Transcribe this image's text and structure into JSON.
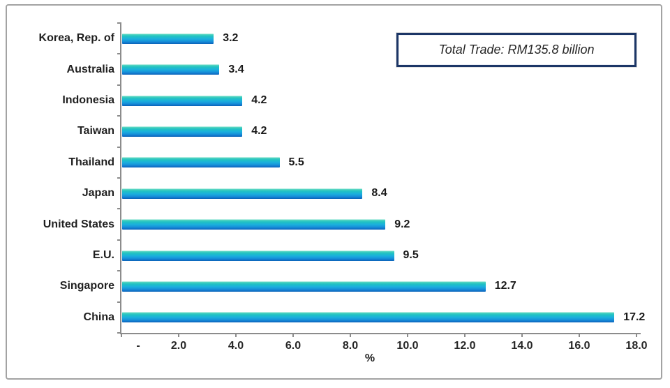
{
  "chart_data": {
    "type": "bar",
    "orientation": "horizontal",
    "title": "",
    "categories": [
      "Korea, Rep. of",
      "Australia",
      "Indonesia",
      "Taiwan",
      "Thailand",
      "Japan",
      "United States",
      "E.U.",
      "Singapore",
      "China"
    ],
    "values": [
      3.2,
      3.4,
      4.2,
      4.2,
      5.5,
      8.4,
      9.2,
      9.5,
      12.7,
      17.2
    ],
    "value_labels": [
      "3.2",
      "3.4",
      "4.2",
      "4.2",
      "5.5",
      "8.4",
      "9.2",
      "9.5",
      "12.7",
      "17.2"
    ],
    "xlabel": "%",
    "xlim": [
      0,
      18
    ],
    "x_tick_values": [
      0,
      2,
      4,
      6,
      8,
      10,
      12,
      14,
      16,
      18
    ],
    "x_tick_labels": [
      "-",
      "2.0",
      "4.0",
      "6.0",
      "8.0",
      "10.0",
      "12.0",
      "14.0",
      "16.0",
      "18.0"
    ],
    "grid": false,
    "legend": "none",
    "annotation": "Total Trade: RM135.8 billion",
    "colors": {
      "bar_gradient": [
        {
          "color": "#e8fbf5",
          "pos": 0
        },
        {
          "color": "#49d1bd",
          "pos": 10
        },
        {
          "color": "#20c1c4",
          "pos": 28
        },
        {
          "color": "#1bb0dd",
          "pos": 52
        },
        {
          "color": "#1791da",
          "pos": 75
        },
        {
          "color": "#0f6fc6",
          "pos": 93
        },
        {
          "color": "#0a62b4",
          "pos": 100
        }
      ],
      "axis": "#8c8c8c",
      "label_text": "#1f1f1f",
      "annotation_border": "#1c3666",
      "frame_border": "#a3a3a3"
    }
  }
}
